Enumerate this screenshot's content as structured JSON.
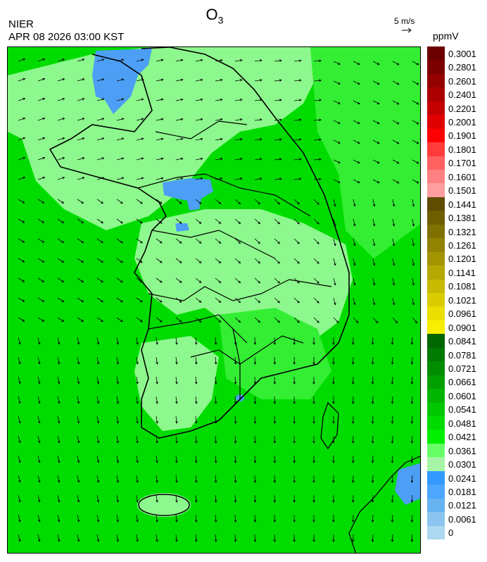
{
  "header": {
    "title_main": "O",
    "title_sub": "3",
    "organization": "NIER",
    "timestamp": "APR 08 2026 03:00 KST",
    "wind_reference": "5 m/s",
    "unit": "ppmV"
  },
  "legend": {
    "labels": [
      "0.3001",
      "0.2801",
      "0.2601",
      "0.2401",
      "0.2201",
      "0.2001",
      "0.1901",
      "0.1801",
      "0.1701",
      "0.1601",
      "0.1501",
      "0.1441",
      "0.1381",
      "0.1321",
      "0.1261",
      "0.1201",
      "0.1141",
      "0.1081",
      "0.1021",
      "0.0961",
      "0.0901",
      "0.0841",
      "0.0781",
      "0.0721",
      "0.0661",
      "0.0601",
      "0.0541",
      "0.0481",
      "0.0421",
      "0.0361",
      "0.0301",
      "0.0241",
      "0.0181",
      "0.0121",
      "0.0061",
      "0"
    ],
    "colors": [
      "#6b0000",
      "#7d0000",
      "#940000",
      "#ab0000",
      "#c40000",
      "#e00000",
      "#ff0000",
      "#ff3b3b",
      "#ff6161",
      "#ff8080",
      "#ff9e9e",
      "#5e4c00",
      "#6e5e00",
      "#807000",
      "#918200",
      "#a39500",
      "#b5a800",
      "#c7ba00",
      "#d9cc00",
      "#ebde00",
      "#f7ef00",
      "#006600",
      "#007a00",
      "#008c00",
      "#00a000",
      "#00b400",
      "#00c800",
      "#00dc00",
      "#00f000",
      "#66ff66",
      "#a6f5a6",
      "#3399ff",
      "#4da6ff",
      "#66b3f0",
      "#8cc6f0",
      "#add8f0"
    ]
  },
  "map": {
    "background_color": "#00dc00",
    "region_colors": {
      "light": "#8df88d",
      "mid": "#33ee33",
      "blue": "#4d9ff5"
    }
  }
}
